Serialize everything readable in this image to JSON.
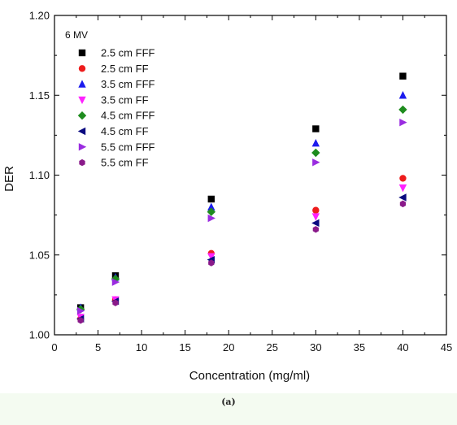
{
  "caption": "(a)",
  "chart_data": {
    "type": "scatter",
    "title": "",
    "xlabel": "Concentration (mg/ml)",
    "ylabel": "DER",
    "xlim": [
      0,
      45
    ],
    "ylim": [
      1.0,
      1.2
    ],
    "x_ticks": [
      0,
      5,
      10,
      15,
      20,
      25,
      30,
      35,
      40,
      45
    ],
    "y_ticks": [
      1.0,
      1.05,
      1.1,
      1.15,
      1.2
    ],
    "legend_title": "6 MV",
    "legend_position": "top-left",
    "grid": false,
    "series": [
      {
        "name": "2.5 cm FFF",
        "marker": "square",
        "color": "#000000",
        "x": [
          3,
          7,
          18,
          30,
          40
        ],
        "y": [
          1.017,
          1.037,
          1.085,
          1.129,
          1.162
        ]
      },
      {
        "name": "2.5 cm FF",
        "marker": "circle",
        "color": "#ee1c1c",
        "x": [
          3,
          7,
          18,
          30,
          40
        ],
        "y": [
          1.01,
          1.022,
          1.051,
          1.078,
          1.098
        ]
      },
      {
        "name": "3.5 cm FFF",
        "marker": "triangle-up",
        "color": "#1c1cee",
        "x": [
          3,
          7,
          18,
          30,
          40
        ],
        "y": [
          1.017,
          1.036,
          1.08,
          1.12,
          1.15
        ]
      },
      {
        "name": "3.5 cm FF",
        "marker": "triangle-down",
        "color": "#ff22ff",
        "x": [
          3,
          7,
          18,
          30,
          40
        ],
        "y": [
          1.011,
          1.022,
          1.049,
          1.074,
          1.092
        ]
      },
      {
        "name": "4.5 cm FFF",
        "marker": "diamond",
        "color": "#1e8c1e",
        "x": [
          3,
          7,
          18,
          30,
          40
        ],
        "y": [
          1.016,
          1.035,
          1.077,
          1.114,
          1.141
        ]
      },
      {
        "name": "4.5 cm FF",
        "marker": "triangle-left",
        "color": "#0a0a80",
        "x": [
          3,
          7,
          18,
          30,
          40
        ],
        "y": [
          1.01,
          1.021,
          1.047,
          1.07,
          1.086
        ]
      },
      {
        "name": "5.5 cm FFF",
        "marker": "triangle-right",
        "color": "#9a2ce0",
        "x": [
          3,
          7,
          18,
          30,
          40
        ],
        "y": [
          1.015,
          1.033,
          1.073,
          1.108,
          1.133
        ]
      },
      {
        "name": "5.5 cm FF",
        "marker": "hexagon",
        "color": "#8a1a8a",
        "x": [
          3,
          7,
          18,
          30,
          40
        ],
        "y": [
          1.009,
          1.02,
          1.045,
          1.066,
          1.082
        ]
      }
    ]
  }
}
